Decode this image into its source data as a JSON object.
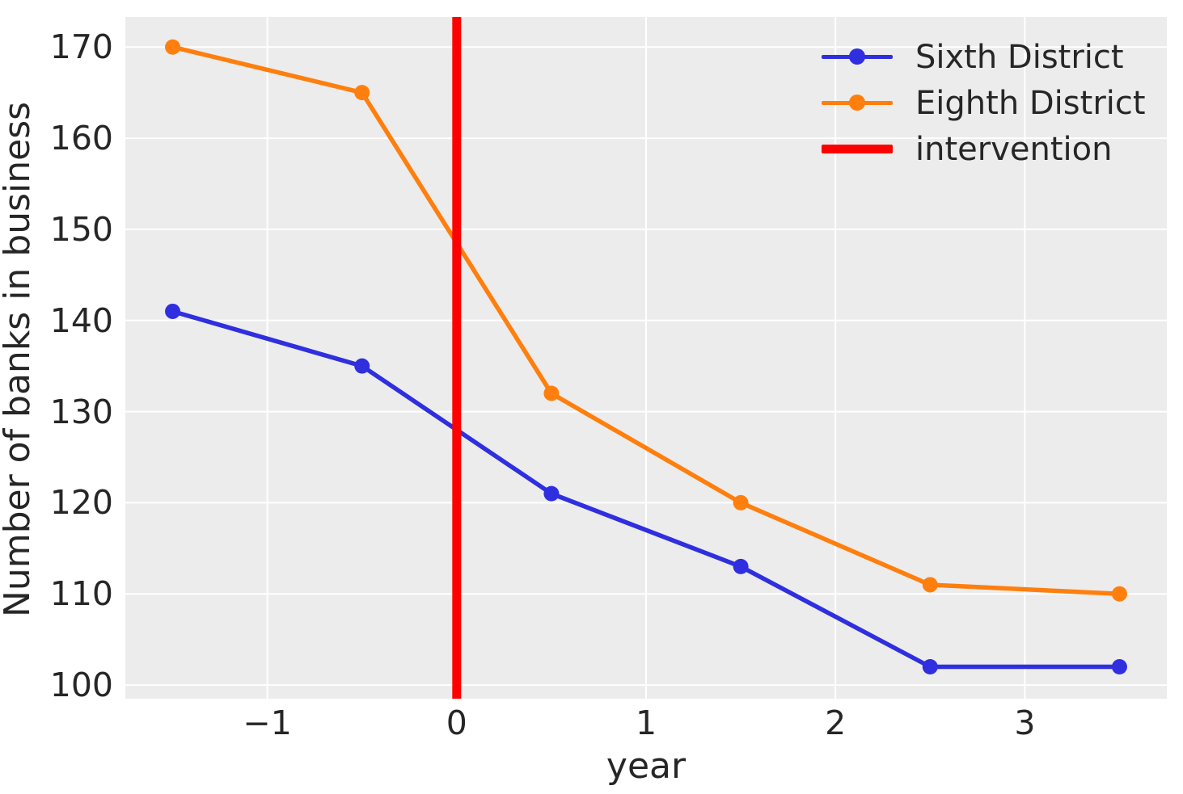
{
  "chart_data": {
    "type": "line",
    "x": [
      -1.5,
      -0.5,
      0.5,
      1.5,
      2.5,
      3.5
    ],
    "series": [
      {
        "name": "Sixth District",
        "color": "#2F2FDF",
        "values": [
          141,
          135,
          121,
          113,
          102,
          102
        ]
      },
      {
        "name": "Eighth District",
        "color": "#FF7F0E",
        "values": [
          170,
          165,
          132,
          120,
          111,
          110
        ]
      }
    ],
    "intervention": {
      "label": "intervention",
      "x": 0,
      "color": "#FF0000"
    },
    "title": "",
    "xlabel": "year",
    "ylabel": "Number of banks in business",
    "xticks": [
      -1,
      0,
      1,
      2,
      3
    ],
    "xtick_labels": [
      "−1",
      "0",
      "1",
      "2",
      "3"
    ],
    "yticks": [
      100,
      110,
      120,
      130,
      140,
      150,
      160,
      170
    ],
    "ytick_labels": [
      "100",
      "110",
      "120",
      "130",
      "140",
      "150",
      "160",
      "170"
    ],
    "xlim": [
      -1.75,
      3.75
    ],
    "ylim": [
      98.5,
      173.3
    ],
    "grid": true,
    "legend_position": "upper right"
  },
  "styles": {
    "fig_bg": "#FFFFFF",
    "plot_bg": "#ECECEC",
    "grid_color": "#FFFFFF",
    "text_color": "#262626"
  }
}
